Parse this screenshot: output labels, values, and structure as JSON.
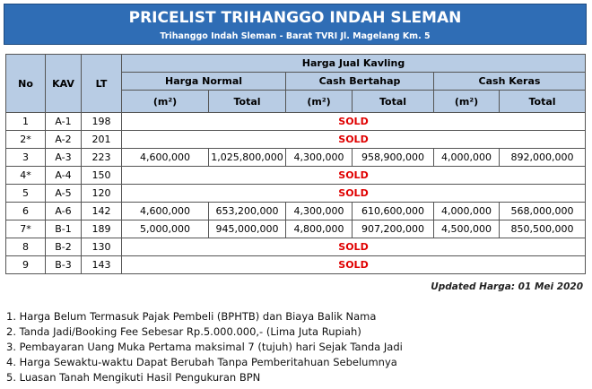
{
  "header": {
    "title": "PRICELIST TRIHANGGO INDAH SLEMAN",
    "subtitle": "Trihanggo Indah Sleman - Barat TVRI Jl. Magelang Km. 5"
  },
  "table": {
    "fixed_columns": [
      "No",
      "KAV",
      "LT"
    ],
    "group": "Harga Jual Kavling",
    "price_groups": [
      "Harga Normal",
      "Cash Bertahap",
      "Cash Keras"
    ],
    "sub_columns": [
      "(m²)",
      "Total",
      "(m²)",
      "Total",
      "(m²)",
      "Total"
    ],
    "rows": [
      {
        "no": "1",
        "kav": "A-1",
        "lt": "198",
        "status": "SOLD"
      },
      {
        "no": "2*",
        "kav": "A-2",
        "lt": "201",
        "status": "SOLD"
      },
      {
        "no": "3",
        "kav": "A-3",
        "lt": "223",
        "prices": [
          "4,600,000",
          "1,025,800,000",
          "4,300,000",
          "958,900,000",
          "4,000,000",
          "892,000,000"
        ]
      },
      {
        "no": "4*",
        "kav": "A-4",
        "lt": "150",
        "status": "SOLD"
      },
      {
        "no": "5",
        "kav": "A-5",
        "lt": "120",
        "status": "SOLD"
      },
      {
        "no": "6",
        "kav": "A-6",
        "lt": "142",
        "prices": [
          "4,600,000",
          "653,200,000",
          "4,300,000",
          "610,600,000",
          "4,000,000",
          "568,000,000"
        ]
      },
      {
        "no": "7*",
        "kav": "B-1",
        "lt": "189",
        "prices": [
          "5,000,000",
          "945,000,000",
          "4,800,000",
          "907,200,000",
          "4,500,000",
          "850,500,000"
        ]
      },
      {
        "no": "8",
        "kav": "B-2",
        "lt": "130",
        "status": "SOLD"
      },
      {
        "no": "9",
        "kav": "B-3",
        "lt": "143",
        "status": "SOLD"
      }
    ]
  },
  "updated": "Updated Harga: 01 Mei 2020",
  "notes": [
    "1. Harga Belum Termasuk Pajak Pembeli (BPHTB) dan Biaya Balik Nama",
    "2. Tanda Jadi/Booking Fee Sebesar Rp.5.000.000,- (Lima Juta Rupiah)",
    "3. Pembayaran Uang Muka Pertama maksimal 7 (tujuh) hari Sejak Tanda Jadi",
    "4. Harga Sewaktu-waktu Dapat Berubah Tanpa Pemberitahuan Sebelumnya",
    "5. Luasan Tanah Mengikuti Hasil Pengukuran BPN"
  ]
}
